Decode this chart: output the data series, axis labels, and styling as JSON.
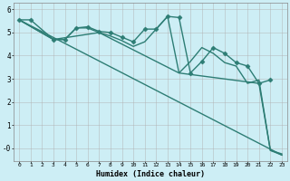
{
  "background_color": "#cdeef5",
  "grid_color": "#b0b0b0",
  "line_color": "#2d7d74",
  "marker_color": "#2d7d74",
  "xlabel": "Humidex (Indice chaleur)",
  "xlim": [
    -0.5,
    23.5
  ],
  "ylim": [
    -0.55,
    6.3
  ],
  "xticks": [
    0,
    1,
    2,
    3,
    4,
    5,
    6,
    7,
    8,
    9,
    10,
    11,
    12,
    13,
    14,
    15,
    16,
    17,
    18,
    19,
    20,
    21,
    22,
    23
  ],
  "yticks": [
    0,
    1,
    2,
    3,
    4,
    5,
    6
  ],
  "ytick_labels": [
    "-0",
    "1",
    "2",
    "3",
    "4",
    "5",
    "6"
  ],
  "series": [
    {
      "x": [
        0,
        1,
        3,
        4,
        5,
        6,
        7,
        8,
        9,
        10,
        11,
        12,
        13,
        14,
        15,
        16,
        17,
        18,
        19,
        20,
        21,
        22
      ],
      "y": [
        5.55,
        5.55,
        4.7,
        4.7,
        5.2,
        5.25,
        5.05,
        5.0,
        4.8,
        4.6,
        5.15,
        5.15,
        5.7,
        5.65,
        3.25,
        3.75,
        4.35,
        4.1,
        3.7,
        3.55,
        2.8,
        2.95
      ],
      "has_markers": true,
      "lw": 1.0
    },
    {
      "x": [
        0,
        3,
        4,
        5,
        6,
        7,
        8,
        9,
        10,
        11,
        12,
        13,
        14,
        15,
        16,
        17,
        18,
        19,
        20,
        21,
        22,
        23
      ],
      "y": [
        5.55,
        4.7,
        4.7,
        5.2,
        5.2,
        5.0,
        4.85,
        4.65,
        4.4,
        4.6,
        5.15,
        5.7,
        3.25,
        3.75,
        4.35,
        4.1,
        3.7,
        3.55,
        2.8,
        2.95,
        -0.1,
        -0.25
      ],
      "has_markers": false,
      "lw": 1.0
    },
    {
      "x": [
        0,
        3,
        7,
        14,
        21,
        22,
        23
      ],
      "y": [
        5.55,
        4.7,
        5.0,
        3.25,
        2.8,
        -0.1,
        -0.3
      ],
      "has_markers": false,
      "lw": 1.0
    },
    {
      "x": [
        0,
        23
      ],
      "y": [
        5.55,
        -0.3
      ],
      "has_markers": false,
      "lw": 1.0
    }
  ]
}
